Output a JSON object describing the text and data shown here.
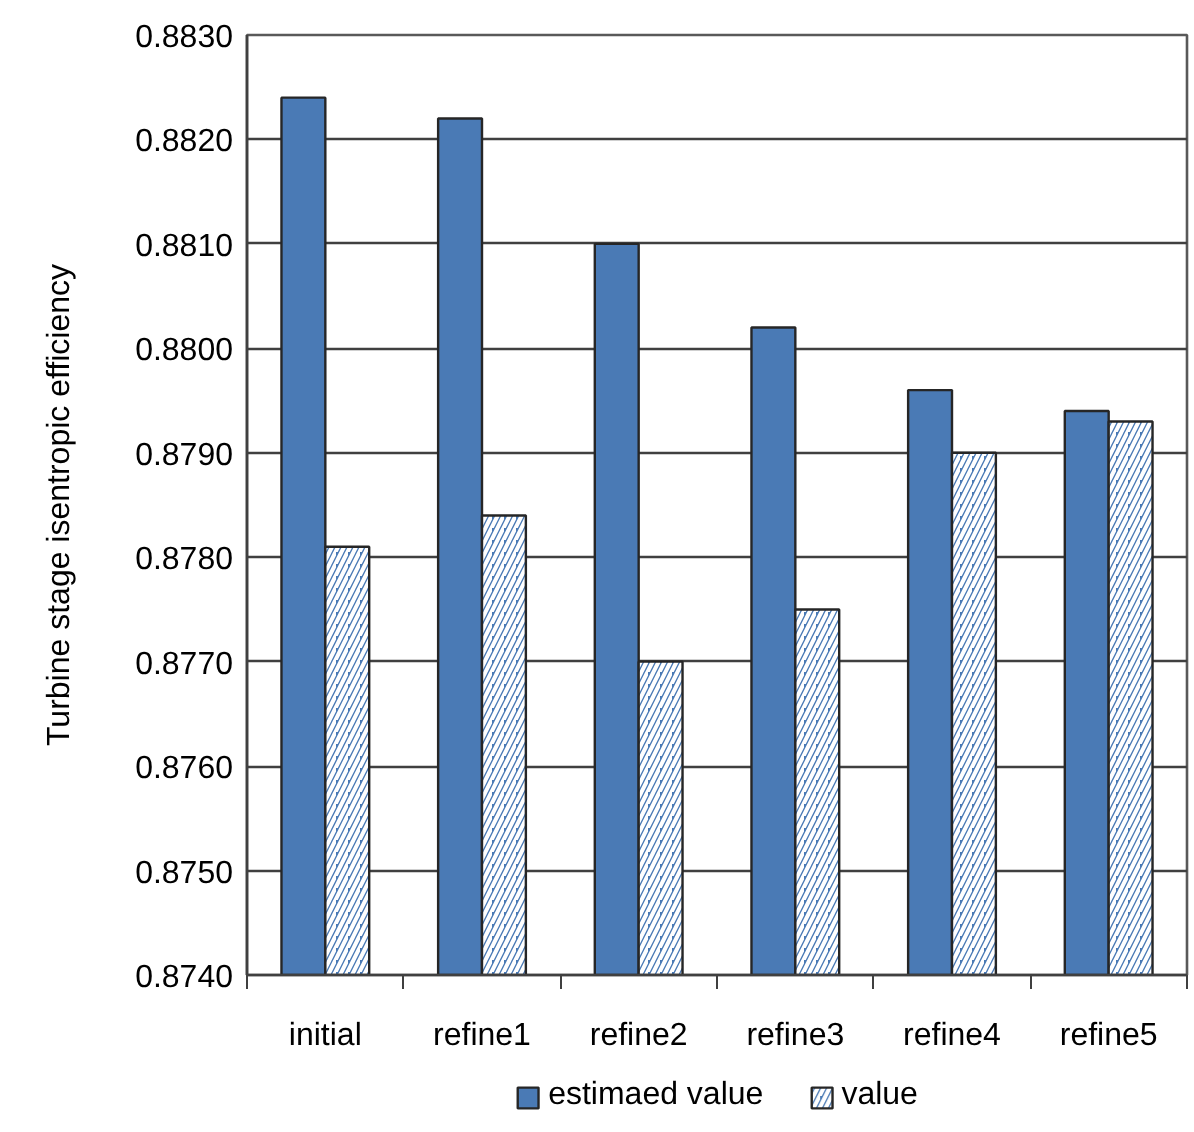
{
  "chart_data": {
    "type": "bar",
    "ylabel": "Turbine stage isentropic efficiency",
    "categories": [
      "initial",
      "refine1",
      "refine2",
      "refine3",
      "refine4",
      "refine5"
    ],
    "series": [
      {
        "name": "estimaed value",
        "color": "#4a7ab5",
        "values": [
          0.8824,
          0.8822,
          0.881,
          0.8802,
          0.8796,
          0.8794
        ]
      },
      {
        "name": "value",
        "color": "#4a7ab5",
        "values": [
          0.8781,
          0.8784,
          0.877,
          0.8775,
          0.879,
          0.8793
        ]
      }
    ],
    "ylim": [
      0.874,
      0.883
    ],
    "yticks": [
      {
        "value": 0.874,
        "label": "0.8740"
      },
      {
        "value": 0.875,
        "label": "0.8750"
      },
      {
        "value": 0.876,
        "label": "0.8760"
      },
      {
        "value": 0.877,
        "label": "0.8770"
      },
      {
        "value": 0.878,
        "label": "0.8780"
      },
      {
        "value": 0.879,
        "label": "0.8790"
      },
      {
        "value": 0.88,
        "label": "0.8800"
      },
      {
        "value": 0.881,
        "label": "0.8810"
      },
      {
        "value": 0.882,
        "label": "0.8820"
      },
      {
        "value": 0.883,
        "label": "0.8830"
      }
    ],
    "grid": "y",
    "legend": "bottom"
  }
}
